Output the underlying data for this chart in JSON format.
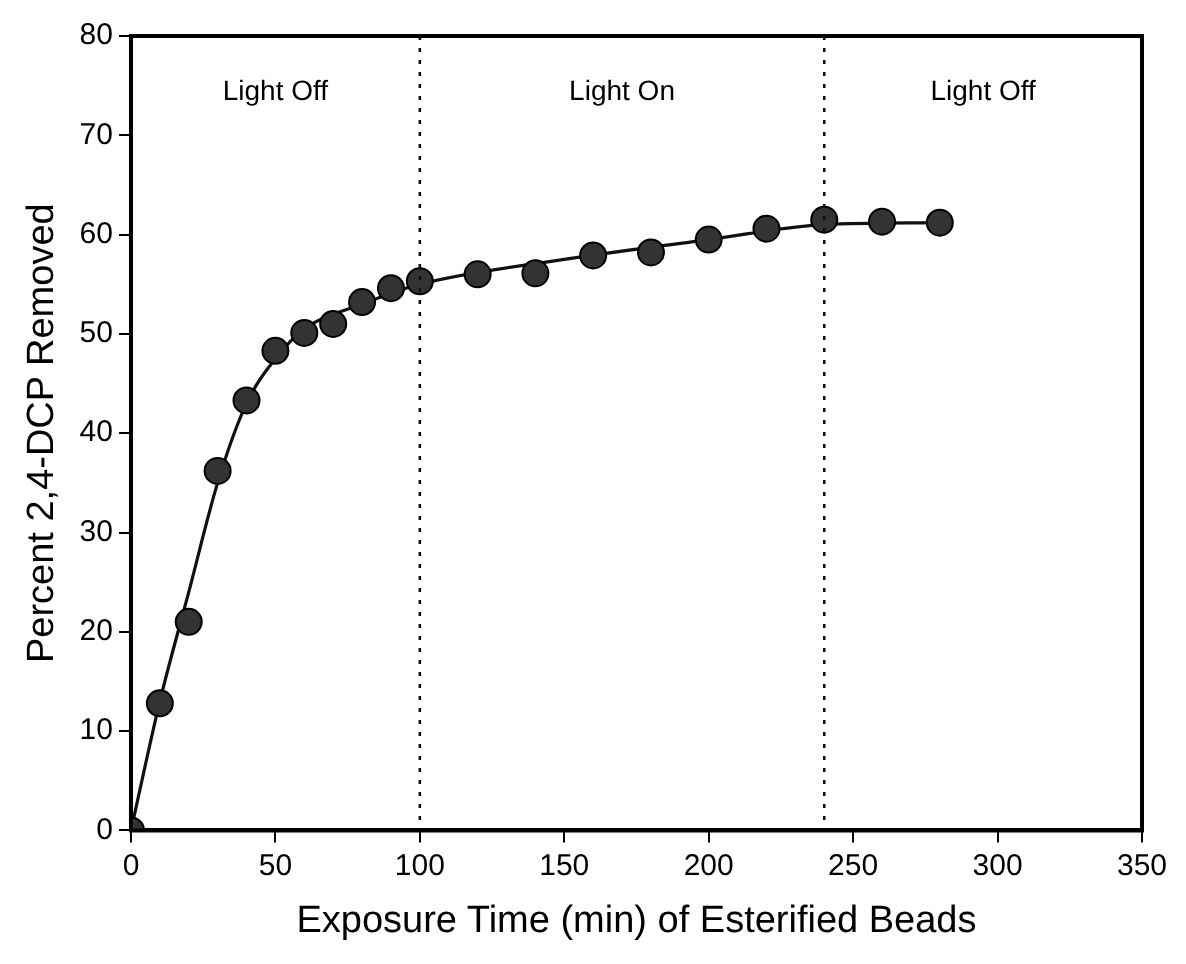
{
  "chart_data": {
    "type": "scatter",
    "xlabel": "Exposure Time (min) of Esterified Beads",
    "ylabel": "Percent 2,4-DCP Removed",
    "x": [
      0,
      10,
      20,
      30,
      40,
      50,
      60,
      70,
      80,
      90,
      100,
      120,
      140,
      160,
      180,
      200,
      220,
      240,
      260,
      280
    ],
    "series": [
      {
        "color": "#333333",
        "marker": "circle",
        "values": [
          0,
          12.8,
          21,
          36.2,
          43.3,
          48.3,
          50.1,
          51,
          53.2,
          54.6,
          55.3,
          56,
          56.1,
          57.9,
          58.2,
          59.5,
          60.6,
          61.5,
          61.3,
          61.2
        ]
      },
      {
        "type": "line",
        "marker": "none",
        "color": "#111111",
        "x": [
          0,
          10,
          20,
          30,
          40,
          50,
          60,
          80,
          100,
          150,
          200,
          240,
          280
        ],
        "values": [
          0,
          13,
          24,
          35,
          43,
          47.5,
          50.5,
          53,
          55,
          57.5,
          59.5,
          61,
          61.2
        ]
      }
    ],
    "xlim": [
      0,
      350
    ],
    "xticks": [
      0,
      50,
      100,
      150,
      200,
      250,
      300,
      350
    ],
    "ylim": [
      0,
      80
    ],
    "yticks": [
      0,
      10,
      20,
      30,
      40,
      50,
      60,
      70,
      80
    ],
    "ref_lines": [
      {
        "axis": "x",
        "value": 100,
        "line_style": "dotted",
        "color": "#111111"
      },
      {
        "axis": "x",
        "value": 240,
        "line_style": "dotted",
        "color": "#111111"
      }
    ],
    "annotations": [
      "Light Off",
      "Light On",
      "Light Off"
    ],
    "grid": false,
    "legend": false
  }
}
